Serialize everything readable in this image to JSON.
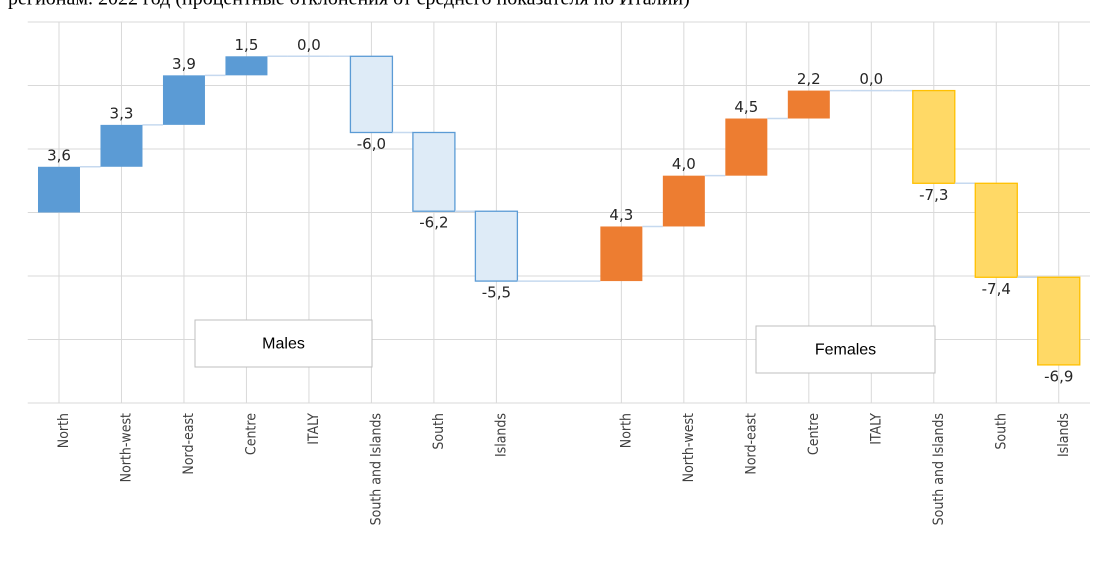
{
  "chart_data": {
    "type": "waterfall",
    "title": "регионам. 2022 год (процентные отклонения от среднего показателя по Италии)",
    "categories": [
      "North",
      "North-west",
      "Nord-east",
      "Centre",
      "ITALY",
      "South and Islands",
      "South",
      "Islands",
      null,
      "North",
      "North-west",
      "Nord-east",
      "Centre",
      "ITALY",
      "South and Islands",
      "South",
      "Islands"
    ],
    "series": [
      {
        "name": "Males",
        "color": "#5b9bd5",
        "negative_color": "#deebf7",
        "negative_border": "#5b9bd5",
        "values": [
          3.6,
          3.3,
          3.9,
          1.5,
          0.0,
          -6.0,
          -6.2,
          -5.5,
          null,
          null,
          null,
          null,
          null,
          null,
          null,
          null,
          null
        ],
        "value_labels": [
          "3,6",
          "3,3",
          "3,9",
          "1,5",
          "0,0",
          "-6,0",
          "-6,2",
          "-5,5",
          null,
          null,
          null,
          null,
          null,
          null,
          null,
          null,
          null
        ]
      },
      {
        "name": "Females",
        "color": "#ed7d31",
        "negative_color": "#ffd966",
        "negative_border": "#ffc000",
        "values": [
          null,
          null,
          null,
          null,
          null,
          null,
          null,
          null,
          null,
          4.3,
          4.0,
          4.5,
          2.2,
          0.0,
          -7.3,
          -7.4,
          -6.9
        ],
        "value_labels": [
          null,
          null,
          null,
          null,
          null,
          null,
          null,
          null,
          null,
          "4,3",
          "4,0",
          "4,5",
          "2,2",
          "0,0",
          "-7,3",
          "-7,4",
          "-6,9"
        ]
      }
    ],
    "ylim": [
      -15,
      15
    ],
    "yticks": [
      -15,
      -10,
      -5,
      0,
      5,
      10,
      15
    ],
    "grid": true
  }
}
